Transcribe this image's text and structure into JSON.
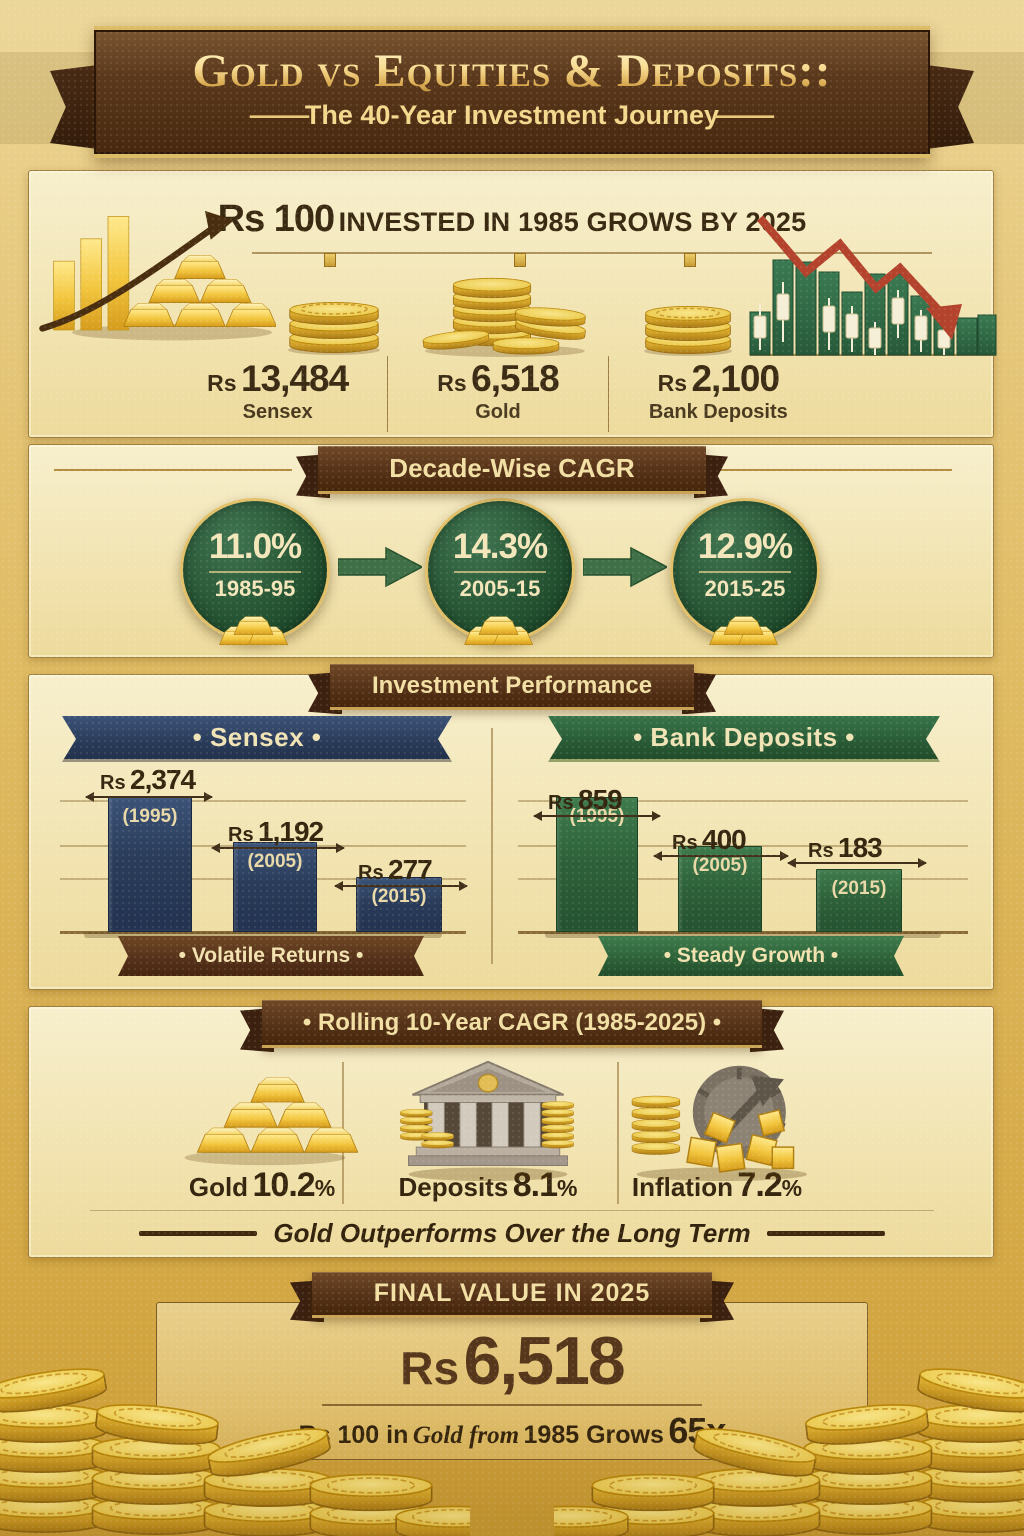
{
  "header": {
    "title": "Gold vs Equities & Deposits::",
    "subtitle": "The 40-Year Investment Journey",
    "ornament": "—"
  },
  "colors": {
    "gold_accent": "#e6c35c",
    "ribbon_brown": "#553218",
    "green": "#2d6038",
    "navy": "#2b3d5c",
    "red_arrow": "#b5462f",
    "parchment": "#f2e4b2"
  },
  "icons": {
    "section1_left": "gold-bars-with-rising-arrow",
    "section1_coins": "gold-coin-stacks",
    "section1_right": "declining-candlestick-chart-red-arrow",
    "section4_gold": "gold-ingot-pyramid",
    "section4_deposits": "bank-building-with-coins",
    "section4_inflation": "coins-blocks-gauge-arrow",
    "bottom": "gold-coin-piles"
  },
  "section1": {
    "headline": {
      "prefix": "Rs 100",
      "rest": "INVESTED IN 1985 GROWS BY 2025"
    },
    "items": [
      {
        "currency": "Rs",
        "value": "13,484",
        "label": "Sensex"
      },
      {
        "currency": "Rs",
        "value": "6,518",
        "label": "Gold"
      },
      {
        "currency": "Rs",
        "value": "2,100",
        "label": "Bank Deposits"
      }
    ]
  },
  "section2": {
    "title": "Decade-Wise CAGR",
    "circles": [
      {
        "pct": "11.0%",
        "period": "1985-95"
      },
      {
        "pct": "14.3%",
        "period": "2005-15"
      },
      {
        "pct": "12.9%",
        "period": "2015-25"
      }
    ]
  },
  "section3": {
    "title": "Investment Performance",
    "charts": [
      {
        "name": "• Sensex •",
        "tagline": "• Volatile Returns •",
        "bars": [
          {
            "currency": "Rs",
            "value": "2,374",
            "year": "(1995)",
            "num": 2374
          },
          {
            "currency": "Rs",
            "value": "1,192",
            "year": "(2005)",
            "num": 1192
          },
          {
            "currency": "Rs",
            "value": "277",
            "year": "(2015)",
            "num": 277
          }
        ]
      },
      {
        "name": "• Bank Deposits •",
        "tagline": "• Steady Growth •",
        "bars": [
          {
            "currency": "Rs",
            "value": "859",
            "year": "(1995)",
            "num": 859
          },
          {
            "currency": "Rs",
            "value": "400",
            "year": "(2005)",
            "num": 400
          },
          {
            "currency": "Rs",
            "value": "183",
            "year": "(2015)",
            "num": 183
          }
        ]
      }
    ]
  },
  "section4": {
    "title": "• Rolling 10-Year CAGR (1985-2025) •",
    "items": [
      {
        "label": "Gold",
        "value": "10.2",
        "unit": "%"
      },
      {
        "label": "Deposits",
        "value": "8.1",
        "unit": "%"
      },
      {
        "label": "Inflation",
        "value": "7.2",
        "unit": "%"
      }
    ],
    "footer": "Gold Outperforms Over the Long Term"
  },
  "section5": {
    "title": "FINAL VALUE IN 2025",
    "currency": "Rs",
    "value": "6,518",
    "subtitle": {
      "p1": "Rs 100 in",
      "p2": "Gold from",
      "p3": "1985 Grows",
      "p4": "65x"
    }
  },
  "chart_data": [
    {
      "type": "bar",
      "title": "Rs 100 invested in 1985 grows by 2025",
      "categories": [
        "Sensex",
        "Gold",
        "Bank Deposits"
      ],
      "values": [
        13484,
        6518,
        2100
      ],
      "unit": "Rs"
    },
    {
      "type": "line",
      "title": "Decade-Wise CAGR",
      "categories": [
        "1985-95",
        "2005-15",
        "2015-25"
      ],
      "values": [
        11.0,
        14.3,
        12.9
      ],
      "unit": "%"
    },
    {
      "type": "bar",
      "title": "Investment Performance — Sensex",
      "categories": [
        "1995",
        "2005",
        "2015"
      ],
      "values": [
        2374,
        1192,
        277
      ],
      "unit": "Rs",
      "note": "Volatile Returns"
    },
    {
      "type": "bar",
      "title": "Investment Performance — Bank Deposits",
      "categories": [
        "1995",
        "2005",
        "2015"
      ],
      "values": [
        859,
        400,
        183
      ],
      "unit": "Rs",
      "note": "Steady Growth"
    },
    {
      "type": "bar",
      "title": "Rolling 10-Year CAGR (1985-2025)",
      "categories": [
        "Gold",
        "Deposits",
        "Inflation"
      ],
      "values": [
        10.2,
        8.1,
        7.2
      ],
      "unit": "%",
      "note": "Gold Outperforms Over the Long Term"
    }
  ]
}
